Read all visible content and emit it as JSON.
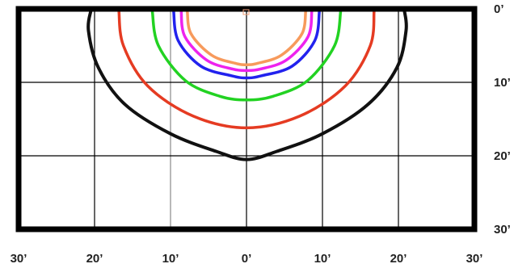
{
  "chart_data": {
    "type": "line",
    "x_tick_labels": [
      "30’",
      "20’",
      "10’",
      "0’",
      "10’",
      "20’",
      "30’"
    ],
    "y_tick_labels": [
      "0’",
      "10’",
      "20’",
      "30’"
    ],
    "x_ticks": [
      -30,
      -20,
      -10,
      0,
      10,
      20,
      30
    ],
    "y_ticks": [
      0,
      10,
      20,
      30
    ],
    "xlim": [
      -30,
      30
    ],
    "ylim": [
      0,
      30
    ],
    "grid": true,
    "series": [
      {
        "color": "#111111",
        "points": [
          [
            -20.5,
            0.3
          ],
          [
            -20.8,
            3
          ],
          [
            -19.5,
            8
          ],
          [
            -16,
            13
          ],
          [
            -10,
            17
          ],
          [
            -4,
            19.4
          ],
          [
            0,
            20.5
          ],
          [
            4,
            19.4
          ],
          [
            10,
            17
          ],
          [
            16,
            13
          ],
          [
            19.8,
            8
          ],
          [
            21,
            3
          ],
          [
            20.8,
            0.3
          ]
        ]
      },
      {
        "color": "#e53b22",
        "points": [
          [
            -16.8,
            0.3
          ],
          [
            -16.2,
            5
          ],
          [
            -13,
            10.5
          ],
          [
            -7,
            14.6
          ],
          [
            0,
            16.2
          ],
          [
            7,
            14.6
          ],
          [
            13,
            10.5
          ],
          [
            16.3,
            5
          ],
          [
            16.8,
            0.3
          ]
        ]
      },
      {
        "color": "#22d222",
        "points": [
          [
            -12.4,
            0.3
          ],
          [
            -11.6,
            5
          ],
          [
            -8,
            9.8
          ],
          [
            -3.5,
            11.9
          ],
          [
            0,
            12.4
          ],
          [
            3.5,
            11.9
          ],
          [
            8,
            9.8
          ],
          [
            11.6,
            5
          ],
          [
            12.4,
            0.3
          ]
        ]
      },
      {
        "color": "#2222ee",
        "points": [
          [
            -9.6,
            0.3
          ],
          [
            -9,
            4.3
          ],
          [
            -6,
            7.8
          ],
          [
            -2,
            9.1
          ],
          [
            0,
            9.4
          ],
          [
            2,
            9.1
          ],
          [
            6,
            7.8
          ],
          [
            9,
            4.3
          ],
          [
            9.6,
            0.3
          ]
        ]
      },
      {
        "color": "#ee22ee",
        "points": [
          [
            -8.6,
            0.3
          ],
          [
            -8.1,
            3.8
          ],
          [
            -5.2,
            7
          ],
          [
            -1.8,
            8.2
          ],
          [
            0,
            8.4
          ],
          [
            1.8,
            8.2
          ],
          [
            5.2,
            7
          ],
          [
            8.1,
            3.8
          ],
          [
            8.6,
            0.3
          ]
        ]
      },
      {
        "color": "#f79a5c",
        "points": [
          [
            -7.8,
            0.3
          ],
          [
            -7.3,
            3.4
          ],
          [
            -4.6,
            6.3
          ],
          [
            -1.5,
            7.4
          ],
          [
            0,
            7.6
          ],
          [
            1.5,
            7.4
          ],
          [
            4.6,
            6.3
          ],
          [
            7.3,
            3.4
          ],
          [
            7.8,
            0.3
          ]
        ]
      }
    ]
  }
}
